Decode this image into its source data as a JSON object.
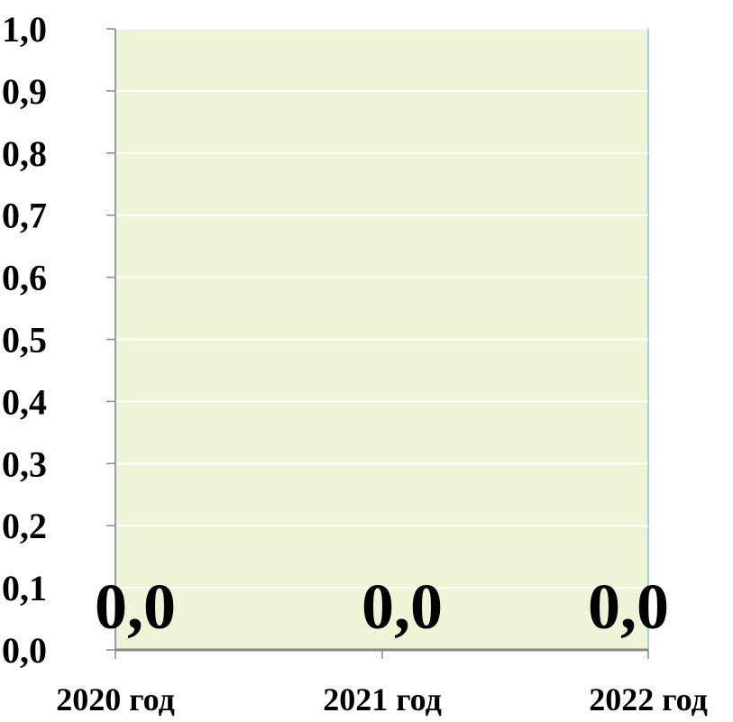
{
  "chart_data": {
    "type": "bar",
    "categories": [
      "2020 год",
      "2021 год",
      "2022 год"
    ],
    "values": [
      0.0,
      0.0,
      0.0
    ],
    "data_labels": [
      "0,0",
      "0,0",
      "0,0"
    ],
    "ylim": [
      0,
      1.0
    ],
    "y_ticks": [
      0.0,
      0.1,
      0.2,
      0.3,
      0.4,
      0.5,
      0.6,
      0.7,
      0.8,
      0.9,
      1.0
    ],
    "y_tick_labels": [
      "0,0",
      "0,1",
      "0,2",
      "0,3",
      "0,4",
      "0,5",
      "0,6",
      "0,7",
      "0,8",
      "0,9",
      "1,0"
    ],
    "grid": true,
    "colors": {
      "plot_background": "#eef5d6",
      "plot_border": "#7ec3e6",
      "gridline": "#ffffff",
      "axis": "#888888",
      "bar": "#4f81bd"
    }
  }
}
